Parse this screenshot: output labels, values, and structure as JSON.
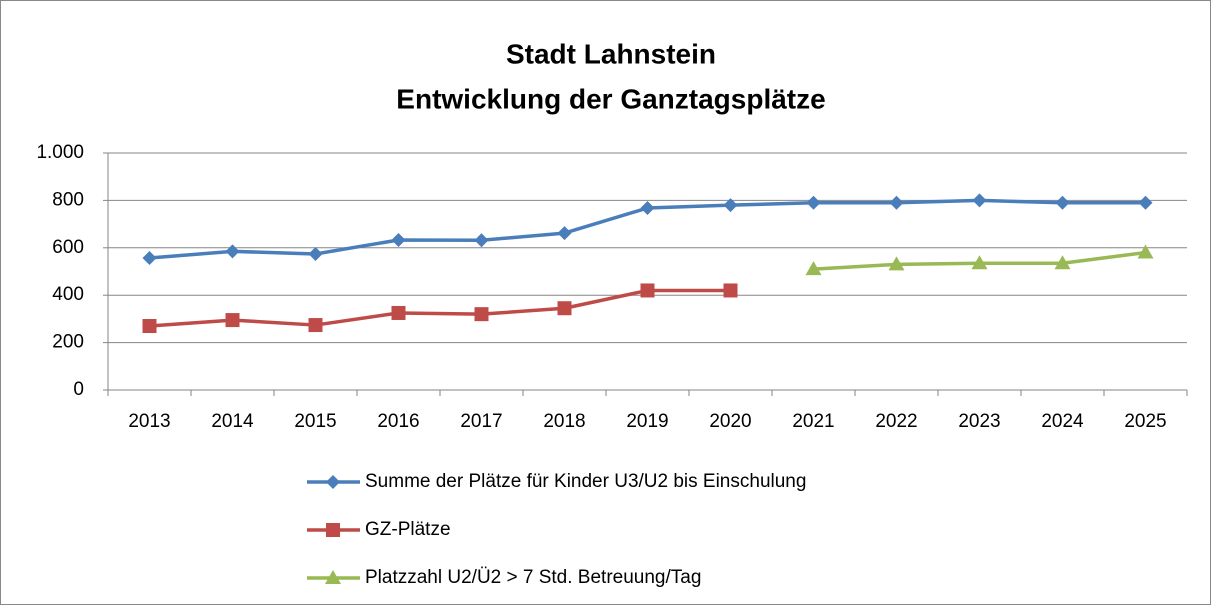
{
  "chart_data": {
    "type": "line",
    "title": "Stadt Lahnstein",
    "subtitle": "Entwicklung der Ganztagsplätze",
    "categories": [
      "2013",
      "2014",
      "2015",
      "2016",
      "2017",
      "2018",
      "2019",
      "2020",
      "2021",
      "2022",
      "2023",
      "2024",
      "2025"
    ],
    "series": [
      {
        "name": "Summe der Plätze für Kinder U3/U2 bis Einschulung",
        "color": "#4a7ebb",
        "marker": "diamond",
        "values": [
          557,
          585,
          574,
          633,
          632,
          662,
          768,
          780,
          790,
          790,
          800,
          790,
          790
        ]
      },
      {
        "name": "GZ-Plätze",
        "color": "#be4b48",
        "marker": "square",
        "values": [
          270,
          295,
          274,
          325,
          320,
          345,
          420,
          420,
          null,
          null,
          null,
          null,
          null
        ]
      },
      {
        "name": "Platzzahl U2/Ü2 > 7 Std. Betreuung/Tag",
        "color": "#98b954",
        "marker": "triangle",
        "values": [
          null,
          null,
          null,
          null,
          null,
          null,
          null,
          null,
          510,
          530,
          535,
          535,
          580
        ]
      }
    ],
    "ylim": [
      0,
      1000
    ],
    "yticks": [
      0,
      200,
      400,
      600,
      800,
      {
        "value": 1000,
        "label": "1.000"
      }
    ],
    "grid": true,
    "legend": "bottom"
  }
}
